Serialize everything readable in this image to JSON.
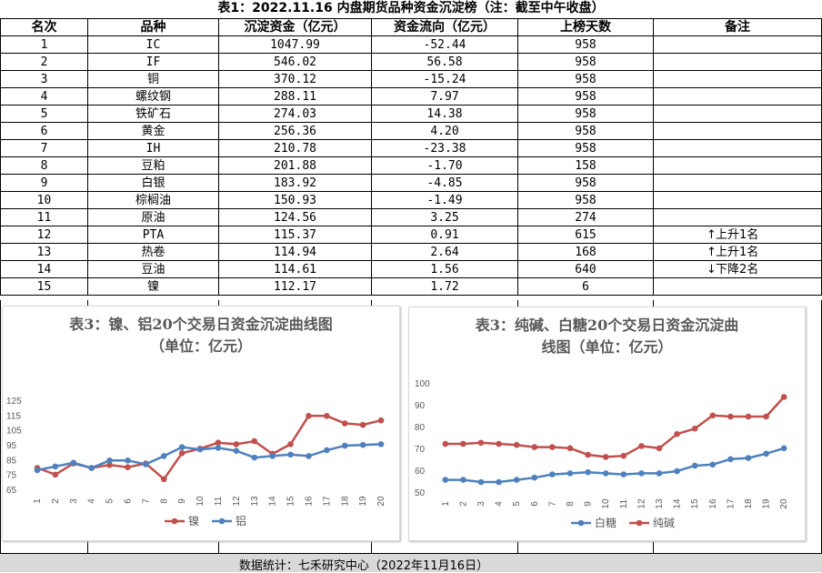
{
  "title": "表1：2022.11.16 内盘期货品种资金沉淀榜（注：截至中午收盘）",
  "table": {
    "headers": [
      "名次",
      "品种",
      "沉淀资金（亿元）",
      "资金流向（亿元）",
      "上榜天数",
      "备注"
    ],
    "rows": [
      [
        "1",
        "IC",
        "1047.99",
        "-52.44",
        "958",
        ""
      ],
      [
        "2",
        "IF",
        "546.02",
        "56.58",
        "958",
        ""
      ],
      [
        "3",
        "铜",
        "370.12",
        "-15.24",
        "958",
        ""
      ],
      [
        "4",
        "螺纹钢",
        "288.11",
        "7.97",
        "958",
        ""
      ],
      [
        "5",
        "铁矿石",
        "274.03",
        "14.38",
        "958",
        ""
      ],
      [
        "6",
        "黄金",
        "256.36",
        "4.20",
        "958",
        ""
      ],
      [
        "7",
        "IH",
        "210.78",
        "-23.38",
        "958",
        ""
      ],
      [
        "8",
        "豆粕",
        "201.88",
        "-1.70",
        "158",
        ""
      ],
      [
        "9",
        "白银",
        "183.92",
        "-4.85",
        "958",
        ""
      ],
      [
        "10",
        "棕榈油",
        "150.93",
        "-1.49",
        "958",
        ""
      ],
      [
        "11",
        "原油",
        "124.56",
        "3.25",
        "274",
        ""
      ],
      [
        "12",
        "PTA",
        "115.37",
        "0.91",
        "615",
        "上升1名"
      ],
      [
        "13",
        "热卷",
        "114.94",
        "2.64",
        "168",
        "上升1名"
      ],
      [
        "14",
        "豆油",
        "114.61",
        "1.56",
        "640",
        "下降2名"
      ],
      [
        "15",
        "镍",
        "112.17",
        "1.72",
        "6",
        ""
      ]
    ],
    "note_arrows": {
      "11": "up-arrow-icon",
      "12": "up-arrow-icon",
      "13": "down-arrow-icon"
    }
  },
  "footer": "数据统计：七禾研究中心（2022年11月16日）",
  "chart_data": [
    {
      "type": "line",
      "title_line1": "表3：镍、铝20个交易日资金沉淀曲线图",
      "title_line2": "（单位：亿元）",
      "x": [
        1,
        2,
        3,
        4,
        5,
        6,
        7,
        8,
        9,
        10,
        11,
        12,
        13,
        14,
        15,
        16,
        17,
        18,
        19,
        20
      ],
      "ylim": [
        65,
        125
      ],
      "yticks": [
        65,
        75,
        85,
        95,
        105,
        115,
        125
      ],
      "series": [
        {
          "name": "镍",
          "color": "#c0504d",
          "values": [
            80,
            75.5,
            83,
            80,
            82,
            80.5,
            83,
            72.5,
            90,
            93,
            97,
            96,
            98,
            89.5,
            96,
            115,
            115,
            110,
            109,
            112
          ]
        },
        {
          "name": "铝",
          "color": "#4f81bd",
          "values": [
            78.5,
            81,
            83.5,
            80,
            85,
            85,
            82.5,
            88,
            94,
            92.5,
            93.5,
            91.5,
            87,
            88,
            89,
            88,
            92,
            95,
            95.5,
            96
          ]
        }
      ],
      "legend": "bottom"
    },
    {
      "type": "line",
      "title_line1": "表3：纯碱、白糖20个交易日资金沉淀曲",
      "title_line2": "线图（单位：亿元）",
      "x": [
        1,
        2,
        3,
        4,
        5,
        6,
        7,
        8,
        9,
        10,
        11,
        12,
        13,
        14,
        15,
        16,
        17,
        18,
        19,
        20
      ],
      "ylim": [
        50,
        100
      ],
      "yticks": [
        50,
        60,
        70,
        80,
        90,
        100
      ],
      "series": [
        {
          "name": "白糖",
          "color": "#4f81bd",
          "values": [
            56,
            56,
            55,
            55,
            56,
            57,
            58.5,
            59,
            59.5,
            59,
            58.5,
            59,
            59,
            60,
            62.5,
            63,
            65.5,
            66,
            68,
            70.5
          ]
        },
        {
          "name": "纯碱",
          "color": "#c0504d",
          "values": [
            72.5,
            72.5,
            73,
            72.5,
            72,
            71,
            71,
            70.5,
            67.5,
            66.5,
            67,
            71.5,
            70.5,
            77,
            79.5,
            85.5,
            85,
            85,
            85,
            94
          ]
        }
      ],
      "legend": "bottom"
    }
  ]
}
